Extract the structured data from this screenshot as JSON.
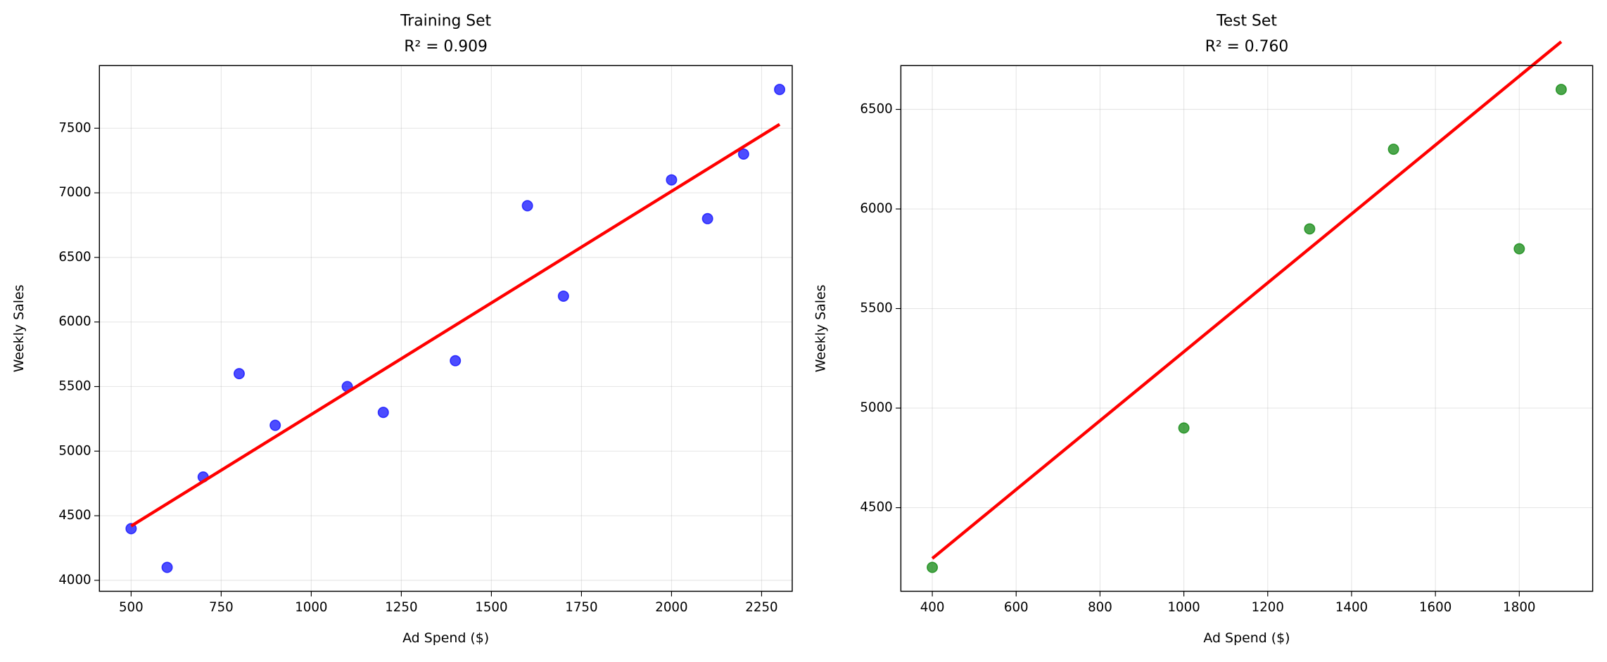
{
  "chart_data": [
    {
      "type": "scatter",
      "title": "Training Set",
      "subtitle": "R² = 0.909",
      "x_label": "Ad Spend ($)",
      "y_label": "Weekly Sales",
      "points": {
        "color": "#0000ff",
        "x": [
          500,
          600,
          700,
          800,
          900,
          1100,
          1200,
          1400,
          1600,
          1700,
          2000,
          2100,
          2200,
          2300
        ],
        "values": [
          4400,
          4100,
          4800,
          5600,
          5200,
          5500,
          5300,
          5700,
          6900,
          6200,
          7100,
          6800,
          7300,
          7800
        ]
      },
      "fit": {
        "color": "#ff0000",
        "x": [
          500,
          2300
        ],
        "values": [
          4420,
          7530
        ]
      },
      "xlim": [
        412,
        2335
      ],
      "xticks": [
        500,
        750,
        1000,
        1250,
        1500,
        1750,
        2000,
        2250
      ],
      "ylim": [
        3915,
        7985
      ],
      "yticks": [
        4000,
        4500,
        5000,
        5500,
        6000,
        6500,
        7000,
        7500
      ],
      "grid": true
    },
    {
      "type": "scatter",
      "title": "Test Set",
      "subtitle": "R² = 0.760",
      "x_label": "Ad Spend ($)",
      "y_label": "Weekly Sales",
      "points": {
        "color": "#008000",
        "x": [
          400,
          1000,
          1300,
          1500,
          1800,
          1900
        ],
        "values": [
          4200,
          4900,
          5900,
          6300,
          5800,
          6600
        ]
      },
      "fit": {
        "color": "#ff0000",
        "x": [
          400,
          1900
        ],
        "values": [
          4245,
          6840
        ]
      },
      "xlim": [
        325,
        1975
      ],
      "xticks": [
        400,
        600,
        800,
        1000,
        1200,
        1400,
        1600,
        1800
      ],
      "ylim": [
        4080,
        6720
      ],
      "yticks": [
        4500,
        5000,
        5500,
        6000,
        6500
      ],
      "grid": true
    }
  ]
}
